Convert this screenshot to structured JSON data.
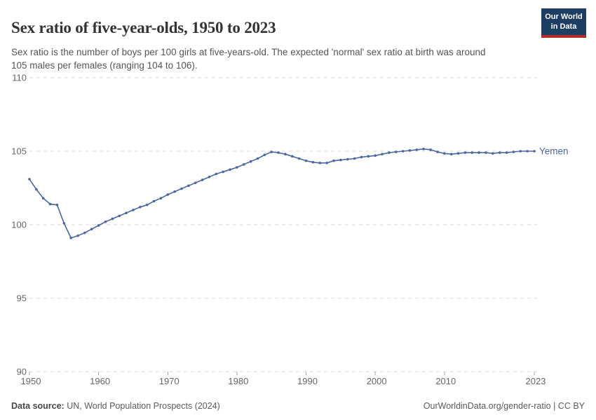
{
  "header": {
    "title": "Sex ratio of five-year-olds, 1950 to 2023",
    "subtitle": "Sex ratio is the number of boys per 100 girls at five-years-old. The expected 'normal' sex ratio at birth was around 105 males per females (ranging 104 to 106).",
    "logo": {
      "line1": "Our World",
      "line2": "in Data"
    }
  },
  "footer": {
    "source_label": "Data source:",
    "source_text": " UN, World Population Prospects (2024)",
    "link_text": "OurWorldinData.org/gender-ratio",
    "license_text": " | CC BY"
  },
  "colors": {
    "line": "#4a67a1",
    "entity_label": "#4a67a1",
    "grid": "#d9d9d9",
    "tick": "#a3a3a3",
    "axis_text": "#666666",
    "logo_navy": "#1d3d63",
    "logo_red": "#b5292a"
  },
  "chart_data": {
    "type": "line",
    "title": "Sex ratio of five-year-olds, 1950 to 2023",
    "xlabel": "",
    "ylabel": "",
    "xlim": [
      1950,
      2023
    ],
    "ylim": [
      90,
      110
    ],
    "x_ticks": [
      1950,
      1960,
      1970,
      1980,
      1990,
      2000,
      2010,
      2023
    ],
    "y_ticks": [
      90,
      95,
      100,
      105,
      110
    ],
    "grid": "horizontal-dashed",
    "legend": "end-of-line-label",
    "x": [
      1950,
      1951,
      1952,
      1953,
      1954,
      1955,
      1956,
      1957,
      1958,
      1959,
      1960,
      1961,
      1962,
      1963,
      1964,
      1965,
      1966,
      1967,
      1968,
      1969,
      1970,
      1971,
      1972,
      1973,
      1974,
      1975,
      1976,
      1977,
      1978,
      1979,
      1980,
      1981,
      1982,
      1983,
      1984,
      1985,
      1986,
      1987,
      1988,
      1989,
      1990,
      1991,
      1992,
      1993,
      1994,
      1995,
      1996,
      1997,
      1998,
      1999,
      2000,
      2001,
      2002,
      2003,
      2004,
      2005,
      2006,
      2007,
      2008,
      2009,
      2010,
      2011,
      2012,
      2013,
      2014,
      2015,
      2016,
      2017,
      2018,
      2019,
      2020,
      2021,
      2022,
      2023
    ],
    "series": [
      {
        "name": "Yemen",
        "values": [
          103.1,
          102.4,
          101.8,
          101.4,
          101.35,
          100.1,
          99.1,
          99.25,
          99.45,
          99.7,
          99.95,
          100.2,
          100.4,
          100.6,
          100.8,
          101.0,
          101.2,
          101.35,
          101.6,
          101.8,
          102.05,
          102.25,
          102.45,
          102.65,
          102.85,
          103.05,
          103.25,
          103.45,
          103.6,
          103.75,
          103.9,
          104.1,
          104.3,
          104.5,
          104.75,
          104.95,
          104.9,
          104.8,
          104.65,
          104.5,
          104.35,
          104.25,
          104.2,
          104.2,
          104.35,
          104.4,
          104.45,
          104.5,
          104.6,
          104.65,
          104.7,
          104.8,
          104.9,
          104.95,
          105.0,
          105.05,
          105.1,
          105.15,
          105.1,
          104.95,
          104.85,
          104.8,
          104.85,
          104.9,
          104.9,
          104.9,
          104.9,
          104.85,
          104.9,
          104.9,
          104.95,
          105.0,
          105.0,
          105.0
        ]
      }
    ]
  }
}
